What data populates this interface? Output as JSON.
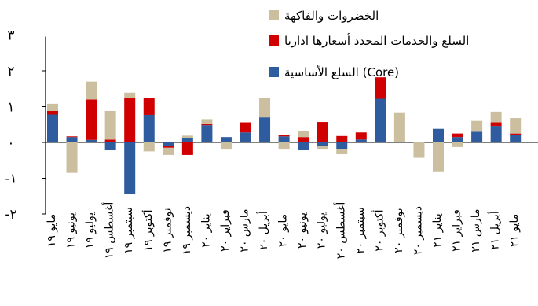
{
  "chart_data": {
    "type": "bar",
    "stacked": true,
    "title": "",
    "xlabel": "",
    "ylabel": "",
    "ylim": [
      -2,
      3
    ],
    "yticks": [
      {
        "value": 3,
        "label": "٣"
      },
      {
        "value": 2,
        "label": "٢"
      },
      {
        "value": 1,
        "label": "١"
      },
      {
        "value": 0,
        "label": "٠"
      },
      {
        "value": -1,
        "label": "-١"
      },
      {
        "value": -2,
        "label": "-٢"
      }
    ],
    "grid": false,
    "legend_position": "top-right",
    "categories": [
      "مايو ١٩",
      "يونيو ١٩",
      "يوليو ١٩",
      "أغسطس ١٩",
      "سبتمبر ١٩",
      "أكتوبر ١٩",
      "نوفمبر ١٩",
      "ديسمبر ١٩",
      "يناير ٢٠",
      "فبراير ٢٠",
      "مارس ٢٠",
      "أبريل ٢٠",
      "مايو ٢٠",
      "يونيو ٢٠",
      "يوليو ٢٠",
      "أغسطس ٢٠",
      "سبتمبر ٢٠",
      "أكتوبر ٢٠",
      "نوفمبر ٢٠",
      "ديسمبر ٢٠",
      "يناير ٢١",
      "فبراير ٢١",
      "مارس ٢١",
      "أبريل ٢١",
      "مايو ٢١"
    ],
    "series": [
      {
        "name": "السلع الأساسية (Core)",
        "color": "#2E5C9E",
        "values": [
          0.78,
          0.15,
          0.07,
          -0.22,
          -1.45,
          0.77,
          -0.1,
          0.13,
          0.48,
          0.15,
          0.28,
          0.7,
          0.17,
          -0.22,
          -0.1,
          -0.18,
          0.08,
          1.22,
          0.0,
          0.0,
          0.38,
          0.15,
          0.3,
          0.46,
          0.22
        ]
      },
      {
        "name": "السلع والخدمات المحدد أسعارها اداريا",
        "color": "#D00000",
        "values": [
          0.1,
          0.02,
          1.13,
          0.08,
          1.25,
          0.47,
          -0.05,
          -0.35,
          0.05,
          0.0,
          0.28,
          0.0,
          0.03,
          0.15,
          0.57,
          0.18,
          0.2,
          0.6,
          0.0,
          0.0,
          0.0,
          0.1,
          0.0,
          0.1,
          0.03
        ]
      },
      {
        "name": "الخضروات والفاكهة",
        "color": "#CBBF9F",
        "values": [
          0.2,
          -0.85,
          0.5,
          0.8,
          0.14,
          -0.25,
          -0.2,
          0.06,
          0.12,
          -0.2,
          0.0,
          0.55,
          -0.2,
          0.16,
          -0.1,
          -0.15,
          0.0,
          0.0,
          0.82,
          -0.43,
          -0.83,
          -0.13,
          0.3,
          0.3,
          0.43
        ]
      }
    ],
    "legend_order": [
      "الخضروات والفاكهة",
      "السلع والخدمات المحدد أسعارها اداريا",
      "السلع الأساسية (Core)"
    ]
  }
}
